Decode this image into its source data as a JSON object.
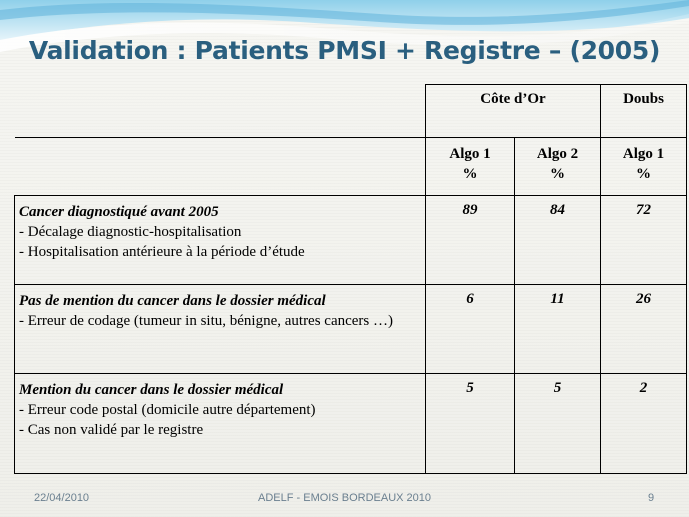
{
  "slide": {
    "title": "Validation : Patients PMSI + Registre – (2005)"
  },
  "table": {
    "groups": [
      "Côte d’Or",
      "Doubs"
    ],
    "subheaders": [
      [
        "Algo 1",
        "%"
      ],
      [
        "Algo 2",
        "%"
      ],
      [
        "Algo 1",
        "%"
      ]
    ],
    "rows": [
      {
        "title": "Cancer diagnostiqué avant 2005",
        "lines": [
          "- Décalage diagnostic-hospitalisation",
          "- Hospitalisation antérieure à la période d’étude"
        ],
        "values": [
          "89",
          "84",
          "72"
        ]
      },
      {
        "title": "Pas de mention du cancer dans le dossier médical",
        "lines": [
          "- Erreur de codage (tumeur in situ, bénigne, autres cancers …)"
        ],
        "values": [
          "6",
          "11",
          "26"
        ]
      },
      {
        "title": "Mention du cancer dans le dossier médical",
        "lines": [
          "- Erreur code postal (domicile autre département)",
          "- Cas non validé par le registre"
        ],
        "values": [
          "5",
          "5",
          "2"
        ]
      }
    ]
  },
  "footer": {
    "date": "22/04/2010",
    "center": "ADELF - EMOIS BORDEAUX 2010",
    "page": "9"
  },
  "colors": {
    "title": "#2a5f7f",
    "footer": "#6a7f8f",
    "wave_light": "#bfe3f2",
    "wave_mid": "#7fc3e3"
  }
}
